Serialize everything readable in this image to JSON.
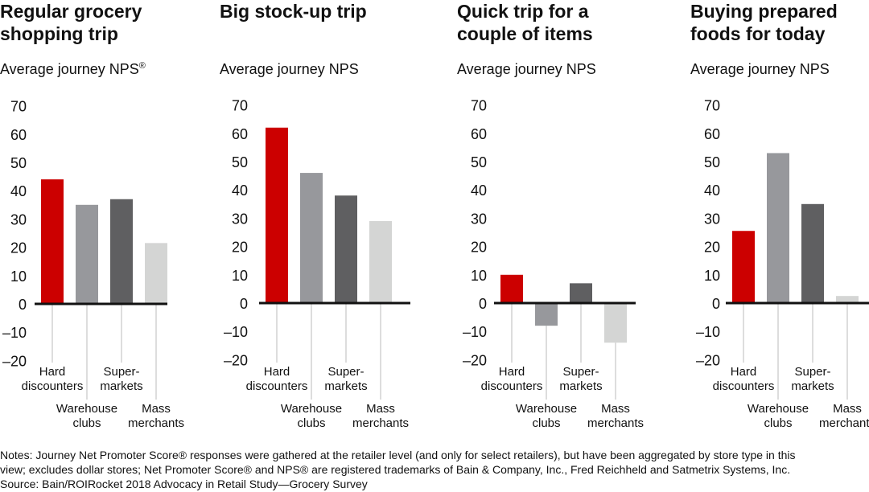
{
  "chart_data": [
    {
      "type": "bar",
      "title": "Regular grocery shopping trip",
      "title_lines": [
        "Regular grocery",
        "shopping trip"
      ],
      "ylabel": "Average journey NPS",
      "ylabel_superscript": "®",
      "categories": [
        "Hard discounters",
        "Warehouse clubs",
        "Super-markets",
        "Mass merchants"
      ],
      "values": [
        44,
        35,
        37,
        21.5
      ],
      "ylim": [
        -20,
        70
      ],
      "yticks": [
        70,
        60,
        50,
        40,
        30,
        20,
        10,
        0,
        -10,
        -20
      ],
      "grid": false
    },
    {
      "type": "bar",
      "title": "Big stock-up trip",
      "title_lines": [
        "Big stock-up trip"
      ],
      "ylabel": "Average journey NPS",
      "ylabel_superscript": "",
      "categories": [
        "Hard discounters",
        "Warehouse clubs",
        "Super-markets",
        "Mass merchants"
      ],
      "values": [
        62,
        46,
        38,
        29
      ],
      "ylim": [
        -20,
        70
      ],
      "yticks": [
        70,
        60,
        50,
        40,
        30,
        20,
        10,
        0,
        -10,
        -20
      ],
      "grid": false
    },
    {
      "type": "bar",
      "title": "Quick trip for a couple of items",
      "title_lines": [
        "Quick trip for a",
        "couple of items"
      ],
      "ylabel": "Average journey NPS",
      "ylabel_superscript": "",
      "categories": [
        "Hard discounters",
        "Warehouse clubs",
        "Super-markets",
        "Mass merchants"
      ],
      "values": [
        10,
        -8,
        7,
        -14
      ],
      "ylim": [
        -20,
        70
      ],
      "yticks": [
        70,
        60,
        50,
        40,
        30,
        20,
        10,
        0,
        -10,
        -20
      ],
      "grid": false
    },
    {
      "type": "bar",
      "title": "Buying prepared foods for today",
      "title_lines": [
        "Buying prepared",
        "foods for today"
      ],
      "ylabel": "Average journey NPS",
      "ylabel_superscript": "",
      "categories": [
        "Hard discounters",
        "Warehouse clubs",
        "Super-markets",
        "Mass merchants"
      ],
      "values": [
        25.5,
        53,
        35,
        2.5
      ],
      "ylim": [
        -20,
        70
      ],
      "yticks": [
        70,
        60,
        50,
        40,
        30,
        20,
        10,
        0,
        -10,
        -20
      ],
      "grid": false
    }
  ],
  "category_label_lines": [
    [
      "Hard",
      "discounters"
    ],
    [
      "Warehouse",
      "clubs"
    ],
    [
      "Super-",
      "markets"
    ],
    [
      "Mass",
      "merchants"
    ]
  ],
  "colors": {
    "hard_discounters": "#cc0000",
    "warehouse_clubs": "#97989c",
    "supermarkets": "#5f5f61",
    "mass_merchants": "#d4d5d4",
    "axis": "#111111",
    "leader": "#bbbbbb"
  },
  "notes": {
    "line1": "Notes: Journey Net Promoter Score® responses were gathered at the retailer level (and only for select retailers), but have been aggregated by store type in this",
    "line2": "view; excludes dollar stores; Net Promoter Score® and NPS® are registered trademarks of Bain & Company, Inc., Fred Reichheld and Satmetrix Systems, Inc.",
    "source": "Source: Bain/ROIRocket 2018 Advocacy in Retail Study—Grocery Survey"
  }
}
